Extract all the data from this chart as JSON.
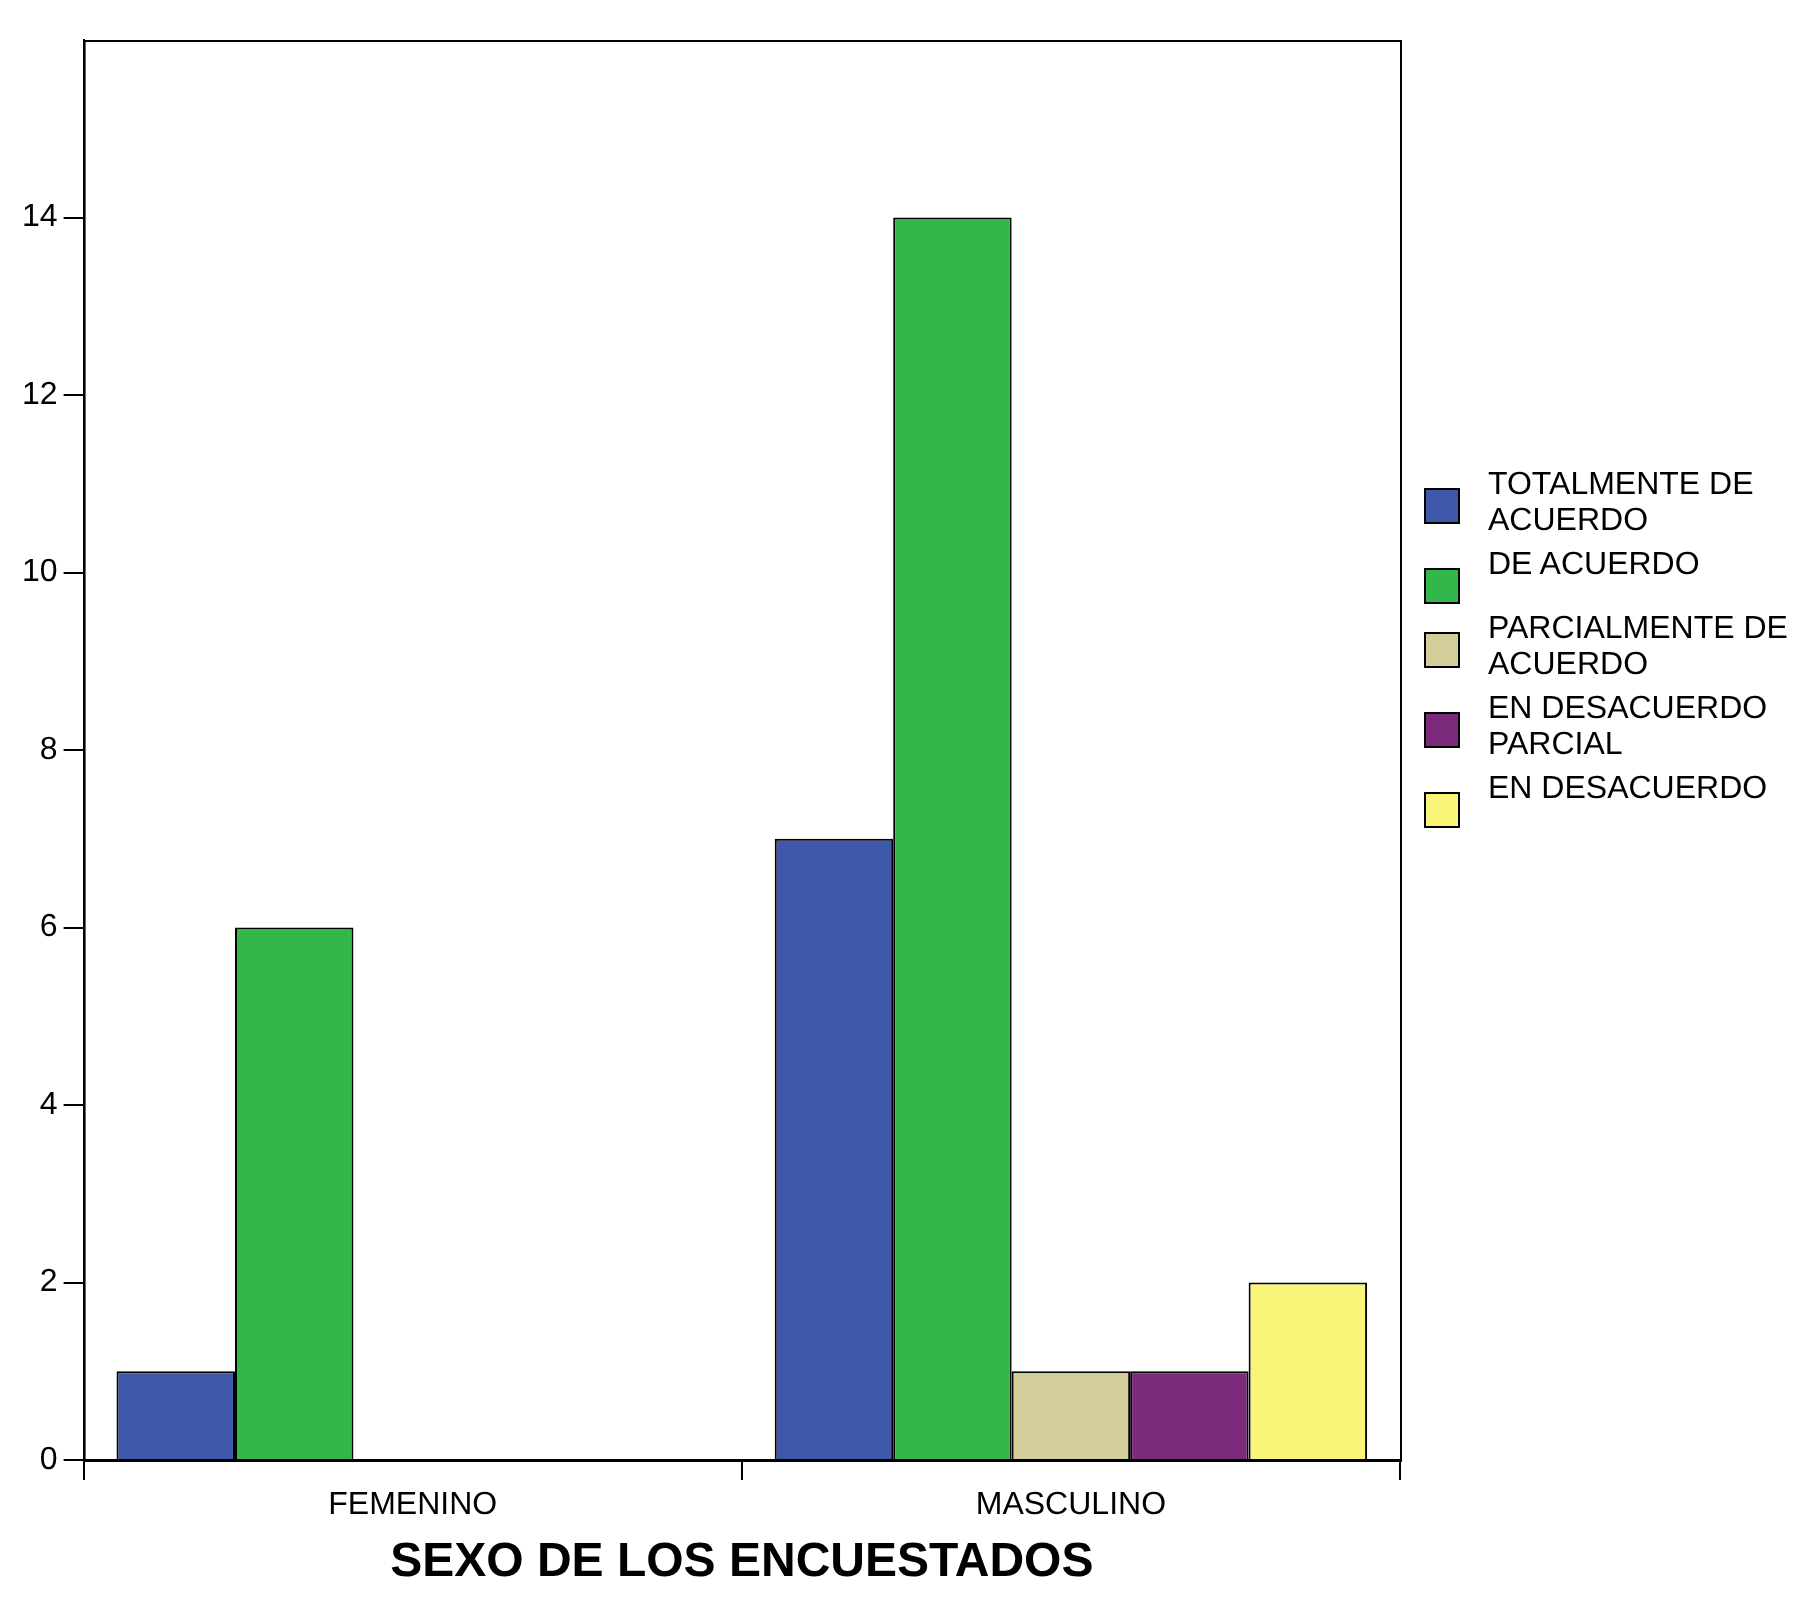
{
  "chart_data": {
    "type": "bar",
    "xlabel": "SEXO DE LOS ENCUESTADOS",
    "categories": [
      "FEMENINO",
      "MASCULINO"
    ],
    "series": [
      {
        "name": "TOTALMENTE DE ACUERDO",
        "color": "#3f59aa",
        "values": [
          1,
          7
        ]
      },
      {
        "name": "DE ACUERDO",
        "color": "#32b84a",
        "values": [
          6,
          14
        ]
      },
      {
        "name": "PARCIALMENTE DE ACUERDO",
        "color": "#d4cf9a",
        "values": [
          0,
          1
        ]
      },
      {
        "name": "EN DESACUERDO PARCIAL",
        "color": "#7c2a7c",
        "values": [
          0,
          1
        ]
      },
      {
        "name": "EN DESACUERDO",
        "color": "#f8f578",
        "values": [
          0,
          2
        ]
      }
    ],
    "ylim": [
      0,
      16
    ],
    "yticks": [
      0,
      2,
      4,
      6,
      8,
      10,
      12,
      14
    ],
    "grid": false,
    "legend": "right"
  }
}
